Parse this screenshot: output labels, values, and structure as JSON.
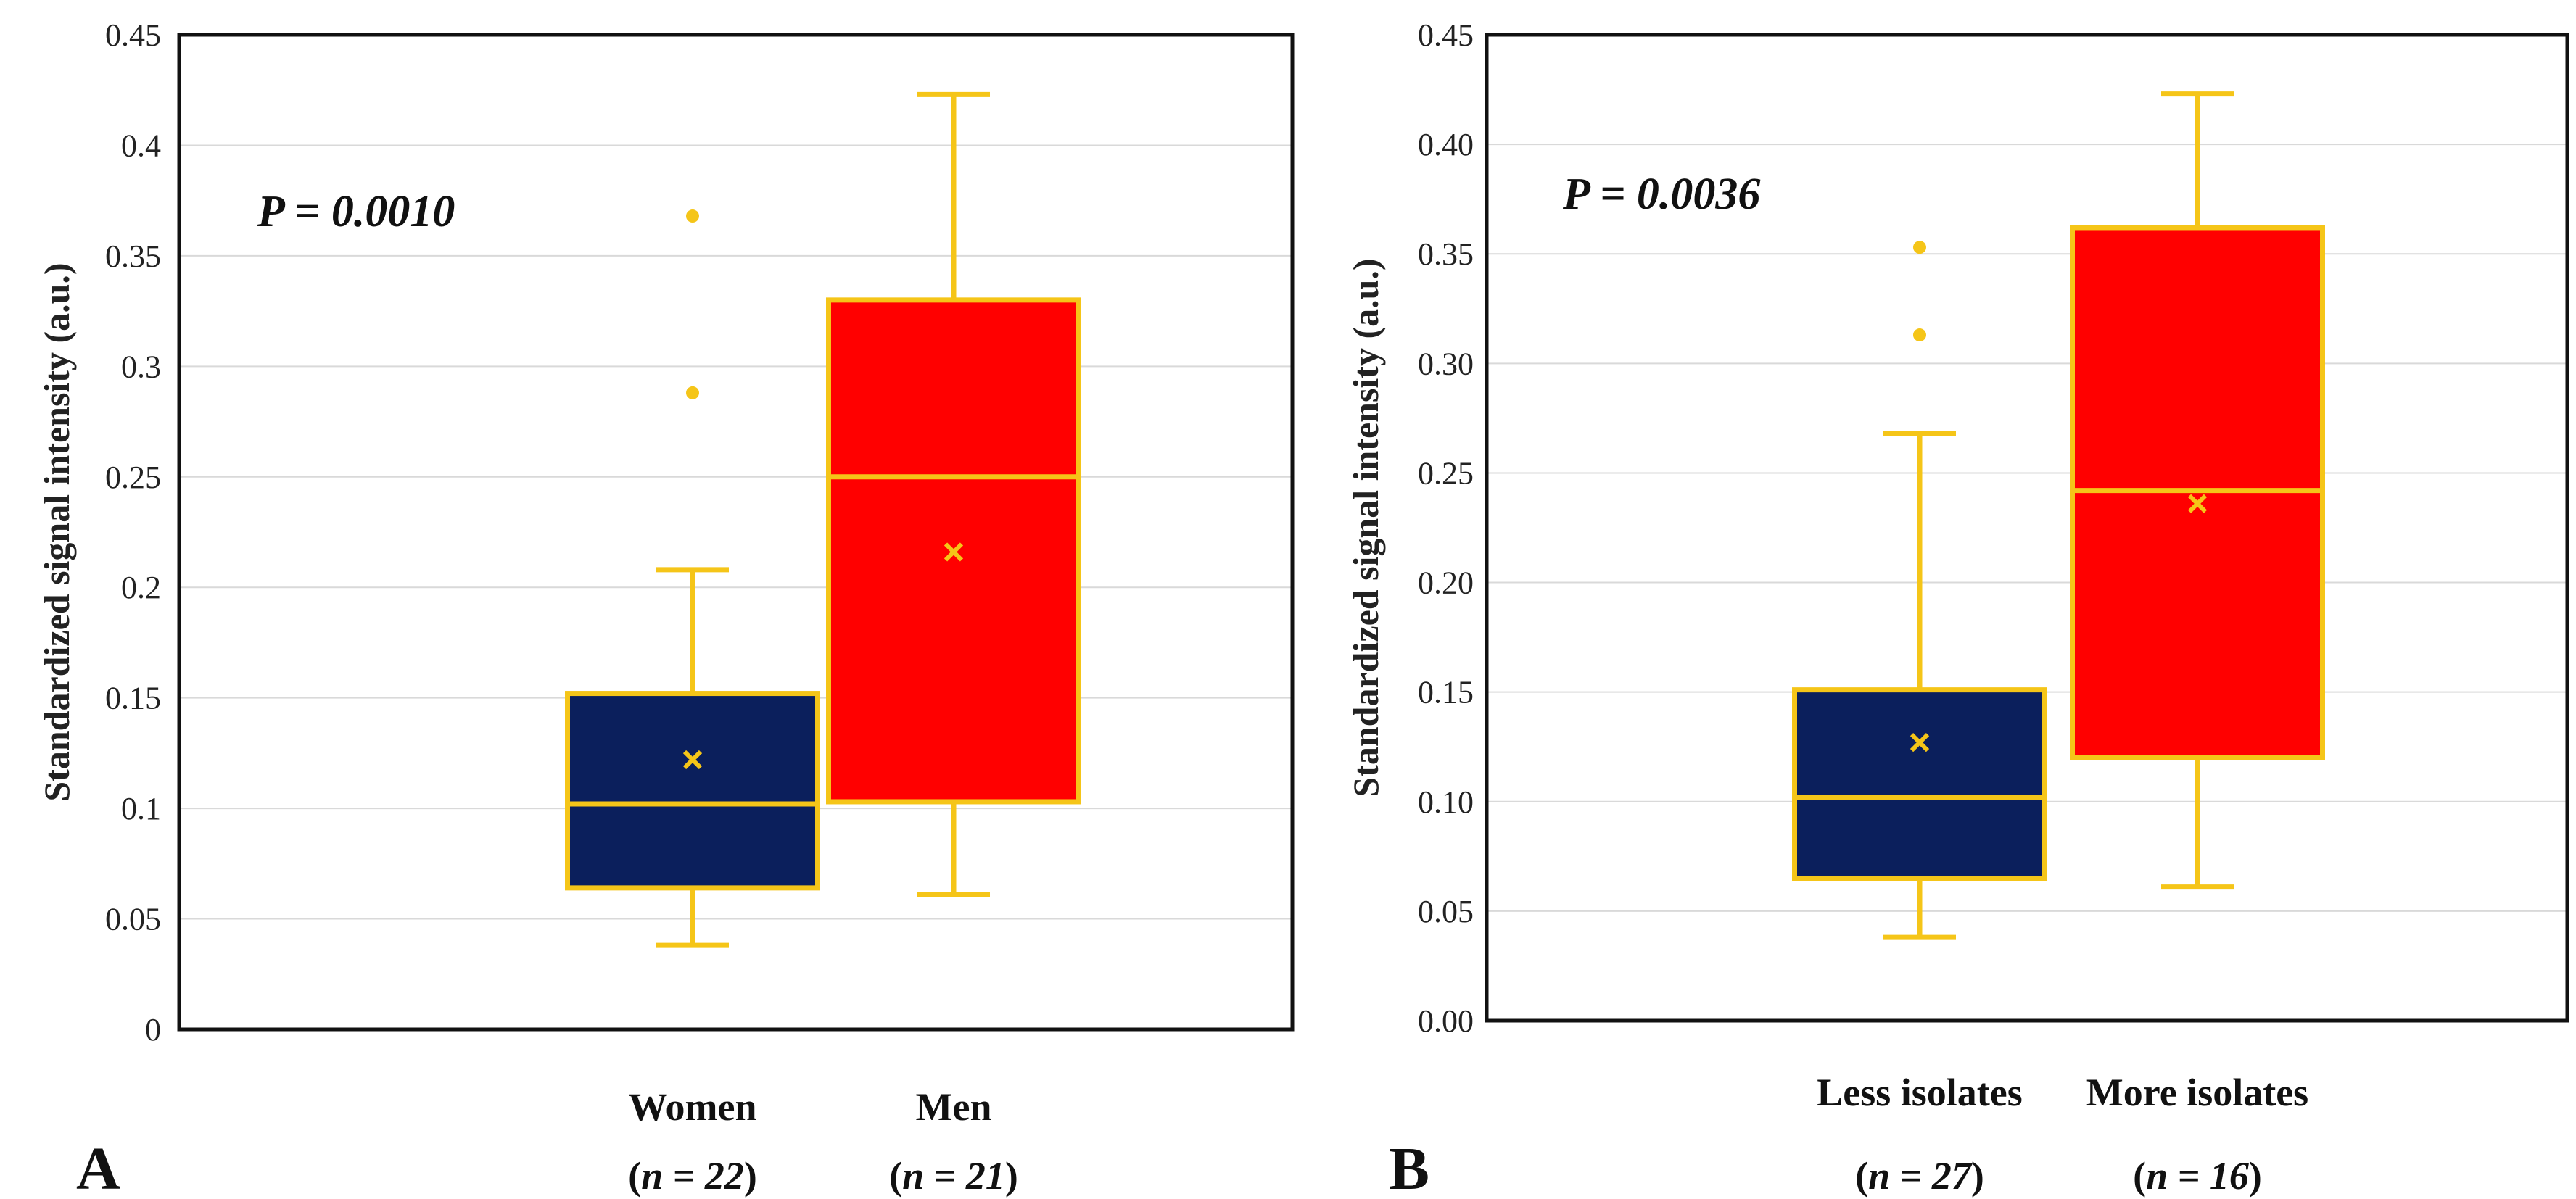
{
  "chart_data": [
    {
      "type": "box",
      "panel_label": "A",
      "ylabel": "Standardized signal intensity (a.u.)",
      "ylim": [
        0,
        0.45
      ],
      "yticks": [
        0,
        0.05,
        0.1,
        0.15,
        0.2,
        0.25,
        0.3,
        0.35,
        0.4,
        0.45
      ],
      "ytick_labels": [
        "0",
        "0.05",
        "0.1",
        "0.15",
        "0.2",
        "0.25",
        "0.3",
        "0.35",
        "0.4",
        "0.45"
      ],
      "grid": true,
      "annotation": {
        "prefix": "P",
        "text": " = 0.0010"
      },
      "groups": [
        {
          "category": "Women",
          "n_var": "n",
          "n_text": " = 22",
          "color": "#0b1f5c",
          "whisker_low": 0.038,
          "q1": 0.064,
          "median": 0.102,
          "q3": 0.152,
          "whisker_high": 0.208,
          "mean": 0.122,
          "outliers": [
            0.288,
            0.368
          ]
        },
        {
          "category": "Men",
          "n_var": "n",
          "n_text": " = 21",
          "color": "#ff0000",
          "whisker_low": 0.061,
          "q1": 0.103,
          "median": 0.25,
          "q3": 0.33,
          "whisker_high": 0.423,
          "mean": 0.216,
          "outliers": []
        }
      ]
    },
    {
      "type": "box",
      "panel_label": "B",
      "ylabel": "Standardized signal intensity (a.u.)",
      "ylim": [
        0,
        0.45
      ],
      "yticks": [
        0,
        0.05,
        0.1,
        0.15,
        0.2,
        0.25,
        0.3,
        0.35,
        0.4,
        0.45
      ],
      "ytick_labels": [
        "0.00",
        "0.05",
        "0.10",
        "0.15",
        "0.20",
        "0.25",
        "0.30",
        "0.35",
        "0.40",
        "0.45"
      ],
      "grid": true,
      "annotation": {
        "prefix": "P",
        "text": " = 0.0036"
      },
      "groups": [
        {
          "category": "Less isolates",
          "n_var": "n",
          "n_text": " = 27",
          "color": "#0b1f5c",
          "whisker_low": 0.038,
          "q1": 0.065,
          "median": 0.102,
          "q3": 0.151,
          "whisker_high": 0.268,
          "mean": 0.127,
          "outliers": [
            0.313,
            0.353
          ]
        },
        {
          "category": "More isolates",
          "n_var": "n",
          "n_text": " = 16",
          "color": "#ff0000",
          "whisker_low": 0.061,
          "q1": 0.12,
          "median": 0.242,
          "q3": 0.362,
          "whisker_high": 0.423,
          "mean": 0.236,
          "outliers": []
        }
      ]
    }
  ],
  "colors": {
    "box_edge": "#f5c518",
    "grid": "#d9d9d9",
    "axis": "#111111"
  }
}
